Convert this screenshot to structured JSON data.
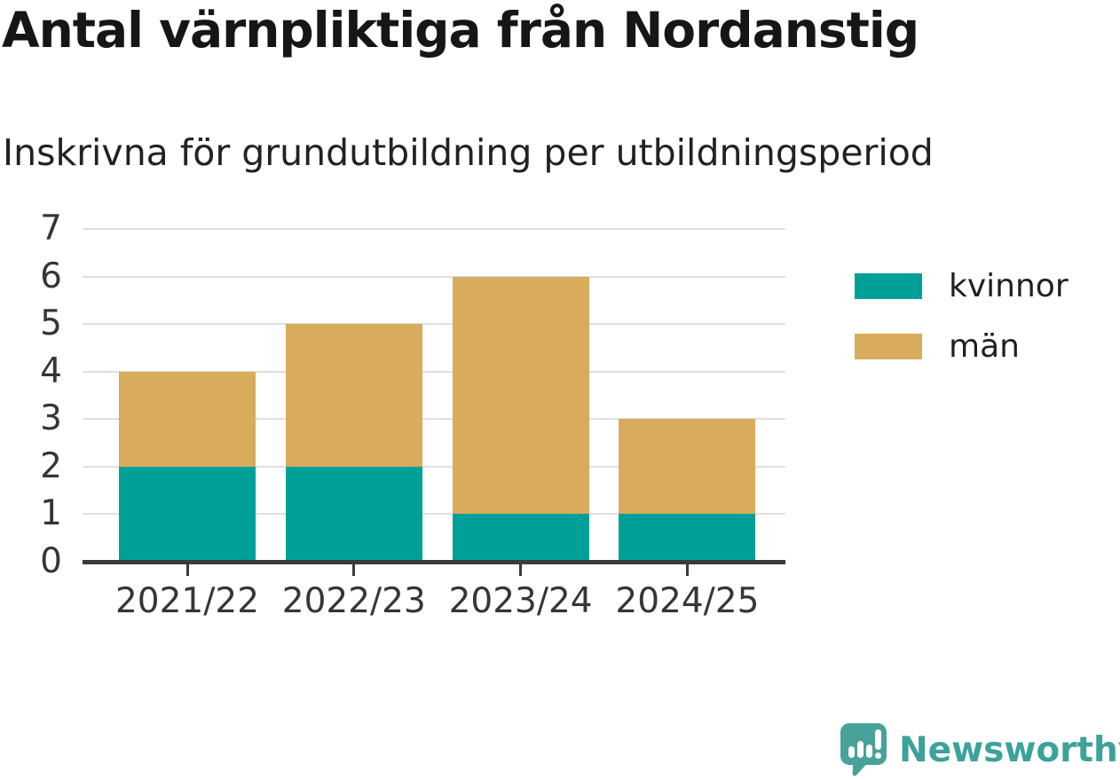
{
  "chart_data": {
    "type": "bar",
    "stacked": true,
    "title": "Antal värnpliktiga från Nordanstig",
    "subtitle": "Inskrivna för grundutbildning per utbildningsperiod",
    "categories": [
      "2021/22",
      "2022/23",
      "2023/24",
      "2024/25"
    ],
    "series": [
      {
        "name": "kvinnor",
        "color": "#00A098",
        "values": [
          2,
          2,
          1,
          1
        ]
      },
      {
        "name": "män",
        "color": "#D8AC5C",
        "values": [
          2,
          3,
          5,
          2
        ]
      }
    ],
    "totals": [
      4,
      5,
      6,
      3
    ],
    "xlabel": "",
    "ylabel": "",
    "ylim": [
      0,
      7
    ],
    "yticks": [
      0,
      1,
      2,
      3,
      4,
      5,
      6,
      7
    ],
    "grid": "horizontal",
    "legend_position": "right"
  },
  "branding": {
    "logo_text": "Newsworthy",
    "logo_icon": "newsworthy-speech-bubble-chart-icon",
    "logo_color": "#3CA29A",
    "logo_icon_color": "#47A29A"
  },
  "theme": {
    "background": "#FFFFFF",
    "title_color": "#161616",
    "subtitle_color": "#222222",
    "axis_color": "#3B3B3B",
    "gridline_color": "#DFDFDF",
    "tick_label_color": "#363636",
    "legend_label_color": "#1F1F1F"
  }
}
